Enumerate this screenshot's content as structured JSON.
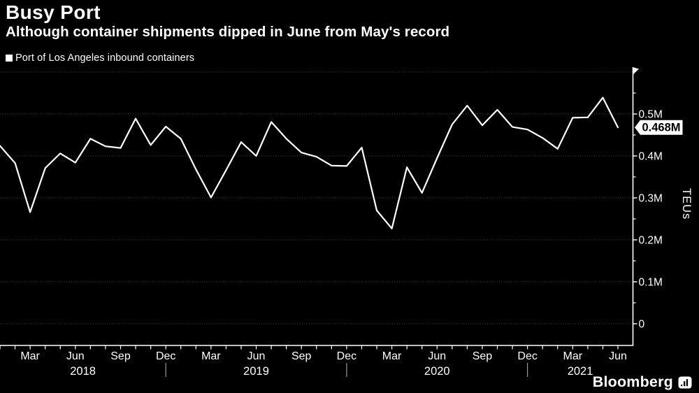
{
  "header": {
    "title": "Busy Port",
    "subtitle": "Although container shipments dipped in June from May's record"
  },
  "legend": {
    "label": "Port of Los Angeles inbound containers"
  },
  "annotation": {
    "last_value_label": "0.468M"
  },
  "axis": {
    "y_unit_label": "TEUs"
  },
  "footer": {
    "brand": "Bloomberg"
  },
  "colors": {
    "background": "#000000",
    "line": "#ffffff",
    "grid": "#4a4a4a",
    "axis": "#ffffff",
    "year_separator": "#9a9a9a",
    "annotation_bg": "#ffffff",
    "annotation_text": "#000000"
  },
  "chart_data": {
    "type": "line",
    "title": "Busy Port",
    "subtitle": "Although container shipments dipped in June from May's record",
    "series_name": "Port of Los Angeles inbound containers",
    "unit": "TEUs",
    "ylim": [
      0,
      0.6
    ],
    "grid": "dotted-horizontal",
    "legend_position": "top-left",
    "y_axis_side": "right",
    "y_tick_labels": [
      "0",
      "0.1M",
      "0.2M",
      "0.3M",
      "0.4M",
      "0.5M"
    ],
    "x_month_labels_shown": [
      "Mar",
      "Jun",
      "Sep",
      "Dec"
    ],
    "year_labels": [
      "2018",
      "2019",
      "2020",
      "2021"
    ],
    "x": [
      "Jan 2018",
      "Feb 2018",
      "Mar 2018",
      "Apr 2018",
      "May 2018",
      "Jun 2018",
      "Jul 2018",
      "Aug 2018",
      "Sep 2018",
      "Oct 2018",
      "Nov 2018",
      "Dec 2018",
      "Jan 2019",
      "Feb 2019",
      "Mar 2019",
      "Apr 2019",
      "May 2019",
      "Jun 2019",
      "Jul 2019",
      "Aug 2019",
      "Sep 2019",
      "Oct 2019",
      "Nov 2019",
      "Dec 2019",
      "Jan 2020",
      "Feb 2020",
      "Mar 2020",
      "Apr 2020",
      "May 2020",
      "Jun 2020",
      "Jul 2020",
      "Aug 2020",
      "Sep 2020",
      "Oct 2020",
      "Nov 2020",
      "Dec 2020",
      "Jan 2021",
      "Feb 2021",
      "Mar 2021",
      "Apr 2021",
      "May 2021",
      "Jun 2021"
    ],
    "values_millions": [
      0.424,
      0.383,
      0.266,
      0.371,
      0.406,
      0.384,
      0.441,
      0.423,
      0.419,
      0.489,
      0.426,
      0.47,
      0.441,
      0.368,
      0.301,
      0.366,
      0.433,
      0.4,
      0.481,
      0.441,
      0.408,
      0.398,
      0.377,
      0.376,
      0.42,
      0.27,
      0.227,
      0.373,
      0.312,
      0.395,
      0.475,
      0.52,
      0.473,
      0.51,
      0.469,
      0.463,
      0.443,
      0.417,
      0.491,
      0.492,
      0.539,
      0.468
    ]
  }
}
